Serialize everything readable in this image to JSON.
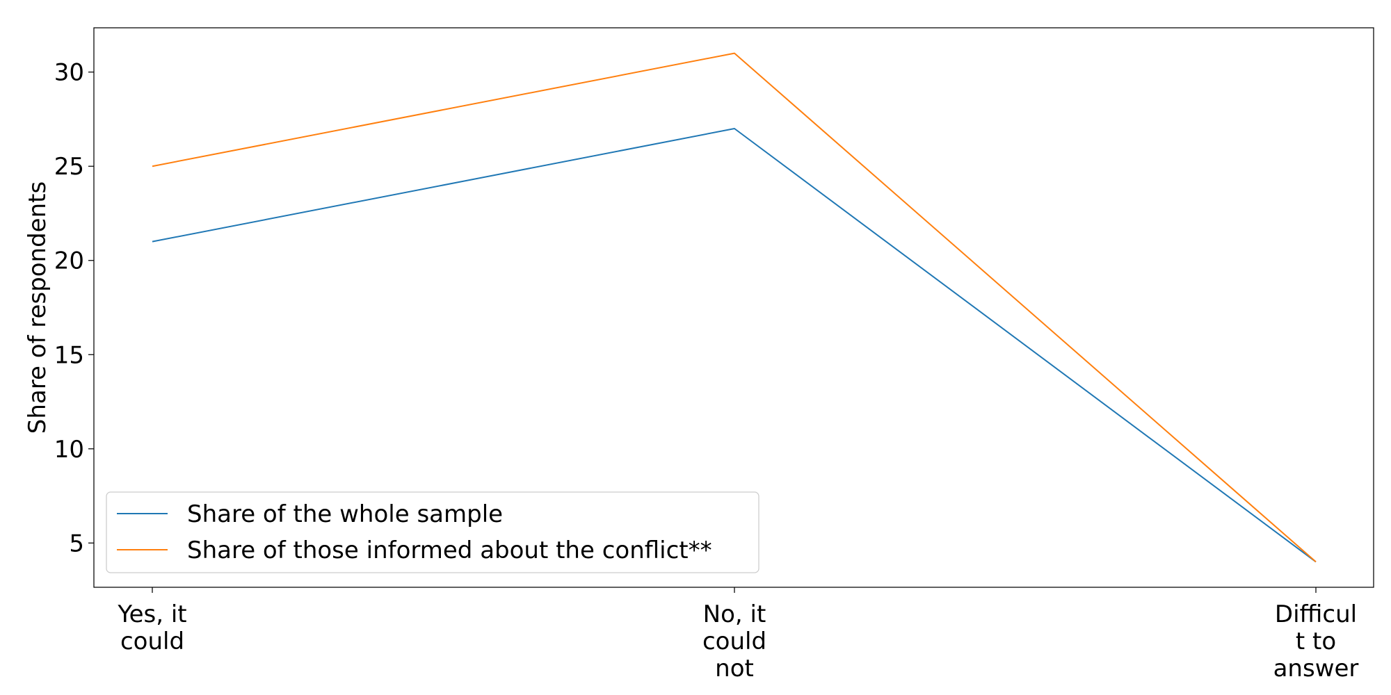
{
  "chart_data": {
    "type": "line",
    "categories": [
      [
        "Yes, it",
        "could"
      ],
      [
        "No, it",
        "could",
        "not"
      ],
      [
        "Difficul",
        "t to",
        "answer"
      ]
    ],
    "series": [
      {
        "name": "Share of the whole sample",
        "values": [
          21,
          27,
          4
        ],
        "color": "#1f77b4"
      },
      {
        "name": "Share of those informed about the conflict**",
        "values": [
          25,
          31,
          4
        ],
        "color": "#ff7f0e"
      }
    ],
    "title": "",
    "xlabel": "",
    "ylabel": "Share of respondents",
    "ylim": [
      2.65,
      32.35
    ],
    "yticks": [
      5,
      10,
      15,
      20,
      25,
      30
    ],
    "grid": false,
    "legend_position": "lower-left"
  }
}
